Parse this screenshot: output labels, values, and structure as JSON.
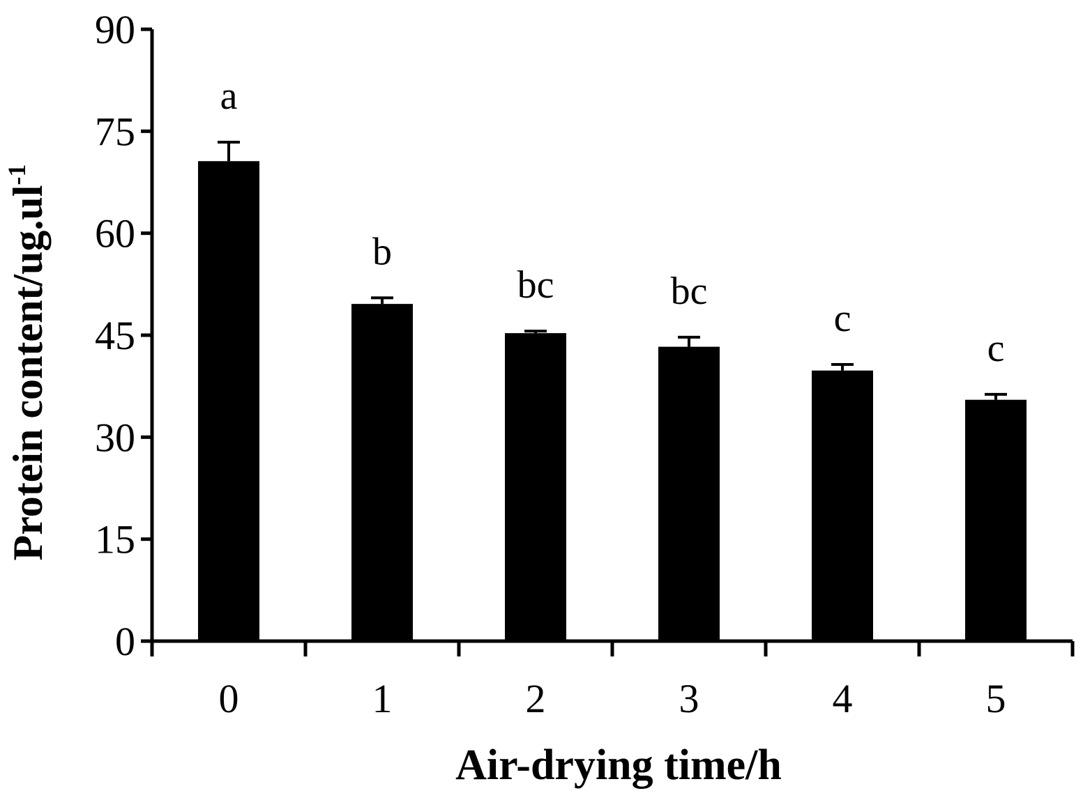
{
  "chart_data": {
    "type": "bar",
    "title": "",
    "xlabel": "Air-drying time/h",
    "ylabel": "Protein content/ug.ul",
    "ylabel_superscript": "-1",
    "categories": [
      "0",
      "1",
      "2",
      "3",
      "4",
      "5"
    ],
    "series": [
      {
        "values": [
          70.6,
          49.6,
          45.3,
          43.3,
          39.8,
          35.5
        ],
        "errors": [
          2.8,
          0.9,
          0.3,
          1.4,
          0.9,
          0.8
        ],
        "labels": [
          "a",
          "b",
          "bc",
          "bc",
          "c",
          "c"
        ],
        "color": "#000000"
      }
    ],
    "ylim": [
      0,
      90
    ],
    "yticks": [
      0,
      15,
      30,
      45,
      60,
      75,
      90
    ],
    "grid": false,
    "legend": "none"
  }
}
